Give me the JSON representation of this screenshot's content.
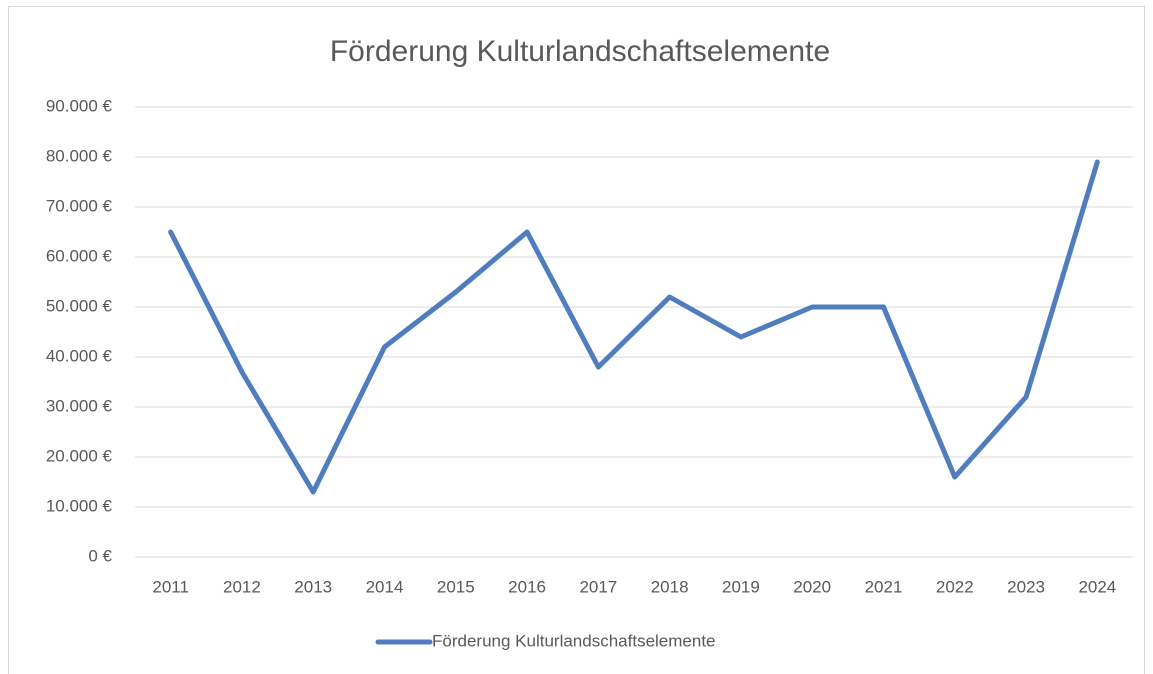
{
  "chart_data": {
    "type": "line",
    "title": "Förderung Kulturlandschaftselemente",
    "categories": [
      "2011",
      "2012",
      "2013",
      "2014",
      "2015",
      "2016",
      "2017",
      "2018",
      "2019",
      "2020",
      "2021",
      "2022",
      "2023",
      "2024"
    ],
    "series": [
      {
        "name": "Förderung Kulturlandschaftselemente",
        "color": "#4f7dbf",
        "values": [
          65000,
          37000,
          13000,
          42000,
          53000,
          65000,
          38000,
          52000,
          44000,
          50000,
          50000,
          16000,
          32000,
          79000
        ]
      }
    ],
    "ylim": [
      0,
      90000
    ],
    "yticks": [
      {
        "value": 0,
        "label": "0 €"
      },
      {
        "value": 10000,
        "label": "10.000 €"
      },
      {
        "value": 20000,
        "label": "20.000 €"
      },
      {
        "value": 30000,
        "label": "30.000 €"
      },
      {
        "value": 40000,
        "label": "40.000 €"
      },
      {
        "value": 50000,
        "label": "50.000 €"
      },
      {
        "value": 60000,
        "label": "60.000 €"
      },
      {
        "value": 70000,
        "label": "70.000 €"
      },
      {
        "value": 80000,
        "label": "80.000 €"
      },
      {
        "value": 90000,
        "label": "90.000 €"
      }
    ],
    "grid": true,
    "legend": "bottom"
  }
}
